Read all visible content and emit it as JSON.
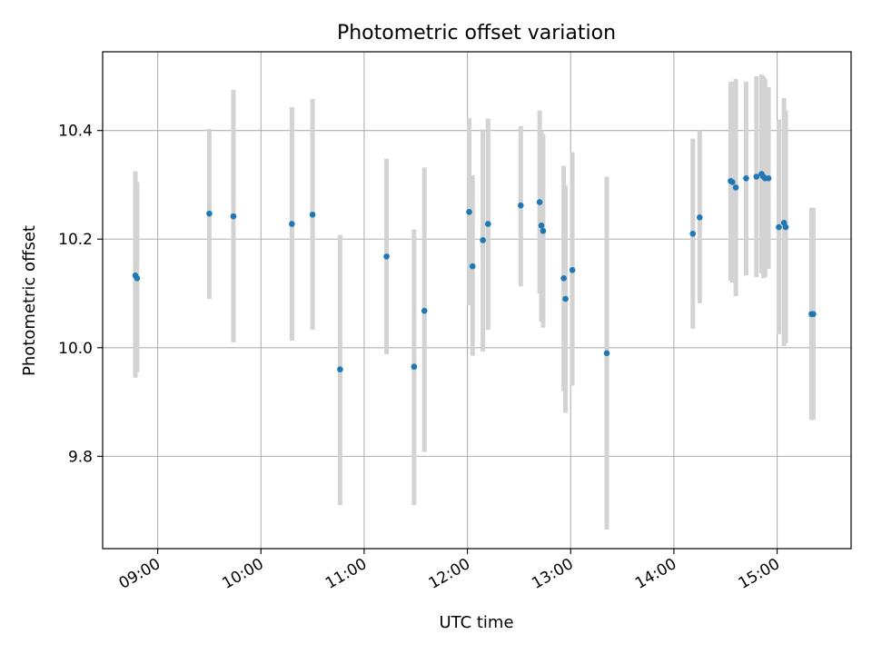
{
  "chart_data": {
    "type": "scatter",
    "title": "Photometric offset variation",
    "xlabel": "UTC time",
    "ylabel": "Photometric offset",
    "xlim": [
      "08:28",
      "15:43"
    ],
    "ylim": [
      9.63,
      10.545
    ],
    "x_ticks": [
      "09:00",
      "10:00",
      "11:00",
      "12:00",
      "13:00",
      "14:00",
      "15:00"
    ],
    "y_ticks": [
      9.8,
      10.0,
      10.2,
      10.4
    ],
    "grid": true,
    "colors": {
      "point": "#1f77b4",
      "errorbar": "#d3d3d3",
      "grid": "#b0b0b0"
    },
    "points": [
      {
        "x": "08:47",
        "y": 10.133,
        "ylow": 9.945,
        "yhigh": 10.325
      },
      {
        "x": "08:48",
        "y": 10.128,
        "ylow": 9.955,
        "yhigh": 10.305
      },
      {
        "x": "09:30",
        "y": 10.247,
        "ylow": 10.09,
        "yhigh": 10.403
      },
      {
        "x": "09:44",
        "y": 10.242,
        "ylow": 10.01,
        "yhigh": 10.475
      },
      {
        "x": "10:18",
        "y": 10.228,
        "ylow": 10.013,
        "yhigh": 10.443
      },
      {
        "x": "10:30",
        "y": 10.245,
        "ylow": 10.033,
        "yhigh": 10.458
      },
      {
        "x": "10:46",
        "y": 9.96,
        "ylow": 9.71,
        "yhigh": 10.208
      },
      {
        "x": "11:13",
        "y": 10.168,
        "ylow": 9.988,
        "yhigh": 10.348
      },
      {
        "x": "11:29",
        "y": 9.965,
        "ylow": 9.71,
        "yhigh": 10.218
      },
      {
        "x": "11:35",
        "y": 10.068,
        "ylow": 9.808,
        "yhigh": 10.332
      },
      {
        "x": "12:01",
        "y": 10.25,
        "ylow": 10.078,
        "yhigh": 10.423
      },
      {
        "x": "12:03",
        "y": 10.15,
        "ylow": 9.985,
        "yhigh": 10.318
      },
      {
        "x": "12:09",
        "y": 10.198,
        "ylow": 9.993,
        "yhigh": 10.402
      },
      {
        "x": "12:12",
        "y": 10.228,
        "ylow": 10.033,
        "yhigh": 10.422
      },
      {
        "x": "12:31",
        "y": 10.262,
        "ylow": 10.113,
        "yhigh": 10.408
      },
      {
        "x": "12:42",
        "y": 10.268,
        "ylow": 10.1,
        "yhigh": 10.437
      },
      {
        "x": "12:43",
        "y": 10.225,
        "ylow": 10.048,
        "yhigh": 10.4
      },
      {
        "x": "12:44",
        "y": 10.215,
        "ylow": 10.037,
        "yhigh": 10.393
      },
      {
        "x": "12:56",
        "y": 10.128,
        "ylow": 9.92,
        "yhigh": 10.335
      },
      {
        "x": "12:57",
        "y": 10.09,
        "ylow": 9.88,
        "yhigh": 10.298
      },
      {
        "x": "13:01",
        "y": 10.143,
        "ylow": 9.93,
        "yhigh": 10.36
      },
      {
        "x": "13:21",
        "y": 9.99,
        "ylow": 9.665,
        "yhigh": 10.315
      },
      {
        "x": "14:11",
        "y": 10.21,
        "ylow": 10.035,
        "yhigh": 10.385
      },
      {
        "x": "14:15",
        "y": 10.24,
        "ylow": 10.082,
        "yhigh": 10.4
      },
      {
        "x": "14:33",
        "y": 10.307,
        "ylow": 10.123,
        "yhigh": 10.49
      },
      {
        "x": "14:34",
        "y": 10.305,
        "ylow": 10.12,
        "yhigh": 10.49
      },
      {
        "x": "14:36",
        "y": 10.295,
        "ylow": 10.095,
        "yhigh": 10.495
      },
      {
        "x": "14:42",
        "y": 10.312,
        "ylow": 10.133,
        "yhigh": 10.49
      },
      {
        "x": "14:48",
        "y": 10.315,
        "ylow": 10.13,
        "yhigh": 10.5
      },
      {
        "x": "14:51",
        "y": 10.32,
        "ylow": 10.137,
        "yhigh": 10.503
      },
      {
        "x": "14:52",
        "y": 10.315,
        "ylow": 10.128,
        "yhigh": 10.5
      },
      {
        "x": "14:53",
        "y": 10.312,
        "ylow": 10.13,
        "yhigh": 10.495
      },
      {
        "x": "14:55",
        "y": 10.312,
        "ylow": 10.145,
        "yhigh": 10.48
      },
      {
        "x": "15:01",
        "y": 10.222,
        "ylow": 10.025,
        "yhigh": 10.42
      },
      {
        "x": "15:04",
        "y": 10.23,
        "ylow": 10.003,
        "yhigh": 10.46
      },
      {
        "x": "15:05",
        "y": 10.222,
        "ylow": 10.008,
        "yhigh": 10.437
      },
      {
        "x": "15:20",
        "y": 10.062,
        "ylow": 9.867,
        "yhigh": 10.258
      },
      {
        "x": "15:21",
        "y": 10.062,
        "ylow": 9.867,
        "yhigh": 10.258
      }
    ]
  }
}
